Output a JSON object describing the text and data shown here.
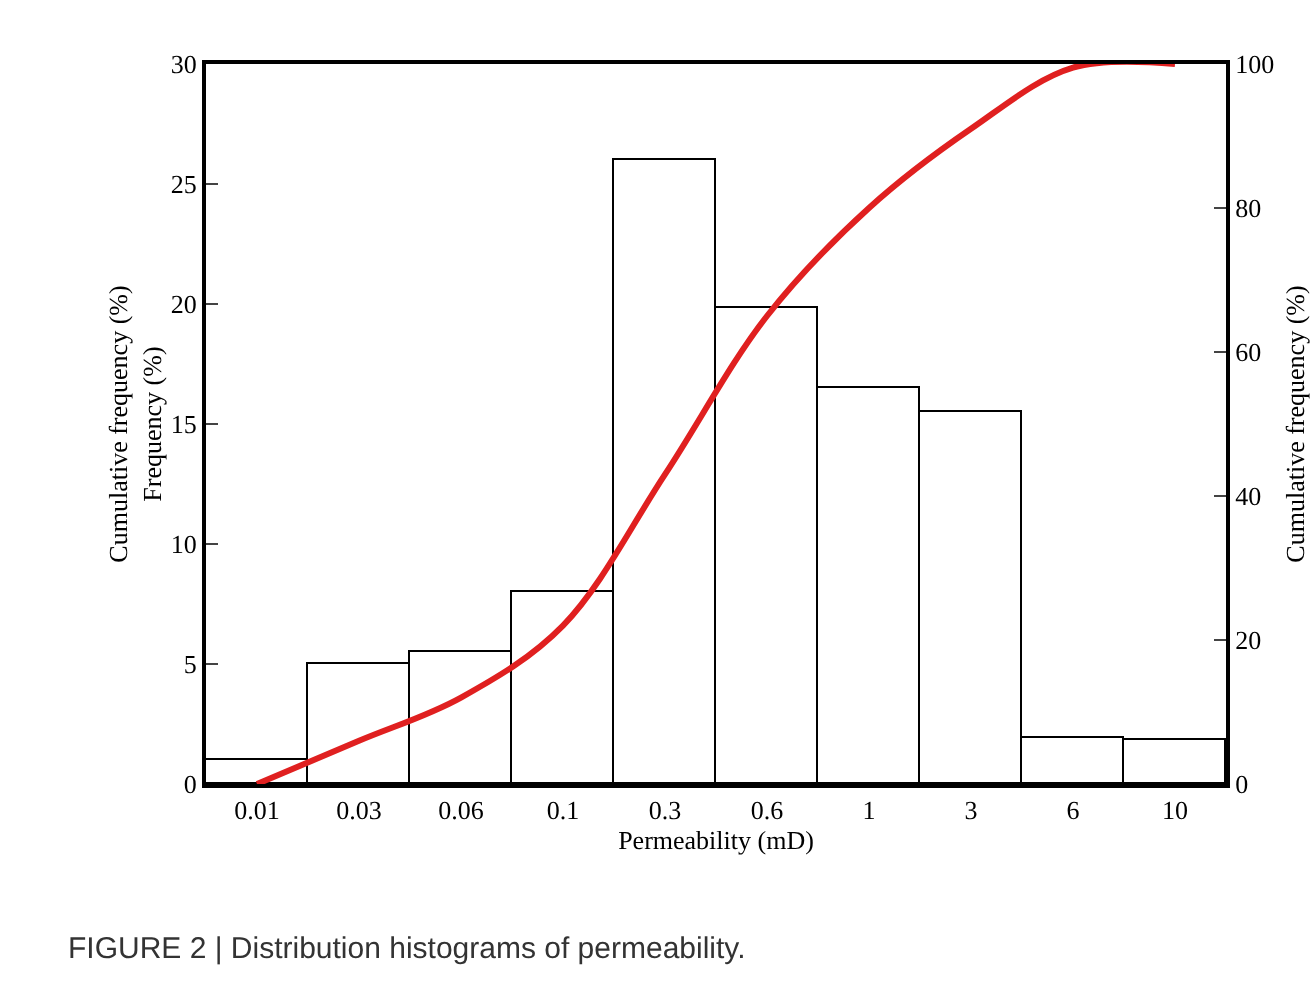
{
  "chart_data": {
    "type": "bar",
    "xlabel": "Permeability (mD)",
    "ylabel": "Cumulative frequency (%)\nFrequency (%)",
    "y2label": "Cumulative frequency (%)",
    "categories": [
      "0.01",
      "0.03",
      "0.06",
      "0.1",
      "0.3",
      "0.6",
      "1",
      "3",
      "6",
      "10"
    ],
    "series": [
      {
        "color": "#ffffff",
        "values": [
          1,
          5,
          5.5,
          8,
          26,
          19.8,
          16.5,
          15.5,
          1.9,
          1.8
        ]
      },
      {
        "type": "line",
        "axis": "y2",
        "color": "#e02020",
        "values": [
          0,
          6,
          12,
          22,
          43,
          65,
          80,
          91,
          99.5,
          100
        ]
      }
    ],
    "ylim": [
      0,
      30
    ],
    "yticks": [
      0,
      5,
      10,
      15,
      20,
      25,
      30
    ],
    "y2lim": [
      0,
      100
    ],
    "y2ticks": [
      0,
      20,
      40,
      60,
      80,
      100
    ],
    "grid": false,
    "marker": "none",
    "line_style": "solid",
    "annotations": [
      "FIGURE 2 | Distribution histograms of permeability."
    ]
  }
}
